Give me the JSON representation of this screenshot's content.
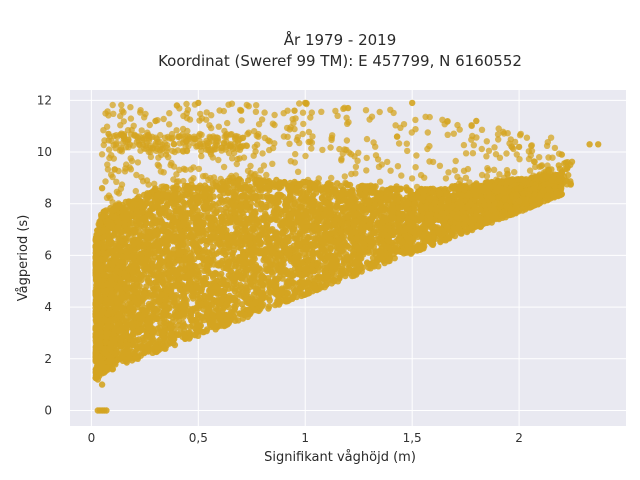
{
  "chart_data": {
    "type": "scatter",
    "title_lines": [
      "År 1979 - 2019",
      "Koordinat (Sweref 99 TM): E 457799, N 6160552"
    ],
    "xlabel": "Signifikant våghöjd (m)",
    "ylabel": "Vågperiod (s)",
    "xlim": [
      -0.1,
      2.5
    ],
    "ylim": [
      -0.6,
      12.4
    ],
    "xticks": [
      0,
      0.5,
      1,
      1.5,
      2
    ],
    "xtick_labels": [
      "0",
      "0,5",
      "1",
      "1,5",
      "2"
    ],
    "yticks": [
      0,
      2,
      4,
      6,
      8,
      10,
      12
    ],
    "ytick_labels": [
      "0",
      "2",
      "4",
      "6",
      "8",
      "10",
      "12"
    ],
    "grid": true,
    "legend": false,
    "colors": {
      "marker": "#d4a420",
      "plot_background": "#e9e9f1",
      "grid": "#ffffff",
      "page_background": "#ffffff"
    },
    "series": [
      {
        "description_points": [
          {
            "x": 0.03,
            "y": 0.0
          },
          {
            "x": 0.04,
            "y": 0.0
          },
          {
            "x": 0.05,
            "y": 0.0
          },
          {
            "x": 0.06,
            "y": 0.0
          },
          {
            "x": 0.07,
            "y": 0.0
          },
          {
            "x": 0.02,
            "y": 1.9
          },
          {
            "x": 0.03,
            "y": 1.2
          },
          {
            "x": 0.05,
            "y": 1.0
          },
          {
            "x": 0.1,
            "y": 1.6
          },
          {
            "x": 0.2,
            "y": 2.2
          },
          {
            "x": 0.3,
            "y": 2.6
          },
          {
            "x": 0.5,
            "y": 3.3
          },
          {
            "x": 0.75,
            "y": 4.1
          },
          {
            "x": 1.0,
            "y": 4.8
          },
          {
            "x": 1.25,
            "y": 5.7
          },
          {
            "x": 1.5,
            "y": 6.6
          },
          {
            "x": 1.75,
            "y": 7.4
          },
          {
            "x": 2.0,
            "y": 8.1
          },
          {
            "x": 2.2,
            "y": 9.2
          },
          {
            "x": 0.03,
            "y": 6.5
          },
          {
            "x": 0.05,
            "y": 8.6
          },
          {
            "x": 0.08,
            "y": 10.7
          },
          {
            "x": 0.15,
            "y": 10.6
          },
          {
            "x": 0.3,
            "y": 11.2
          },
          {
            "x": 0.4,
            "y": 11.8
          },
          {
            "x": 0.5,
            "y": 11.9
          },
          {
            "x": 0.7,
            "y": 11.6
          },
          {
            "x": 0.95,
            "y": 11.6
          },
          {
            "x": 1.0,
            "y": 11.9
          },
          {
            "x": 1.2,
            "y": 11.7
          },
          {
            "x": 1.5,
            "y": 11.9
          },
          {
            "x": 1.8,
            "y": 11.2
          },
          {
            "x": 2.0,
            "y": 10.2
          },
          {
            "x": 2.2,
            "y": 9.9
          },
          {
            "x": 2.33,
            "y": 10.3
          },
          {
            "x": 2.37,
            "y": 10.3
          }
        ]
      }
    ]
  }
}
